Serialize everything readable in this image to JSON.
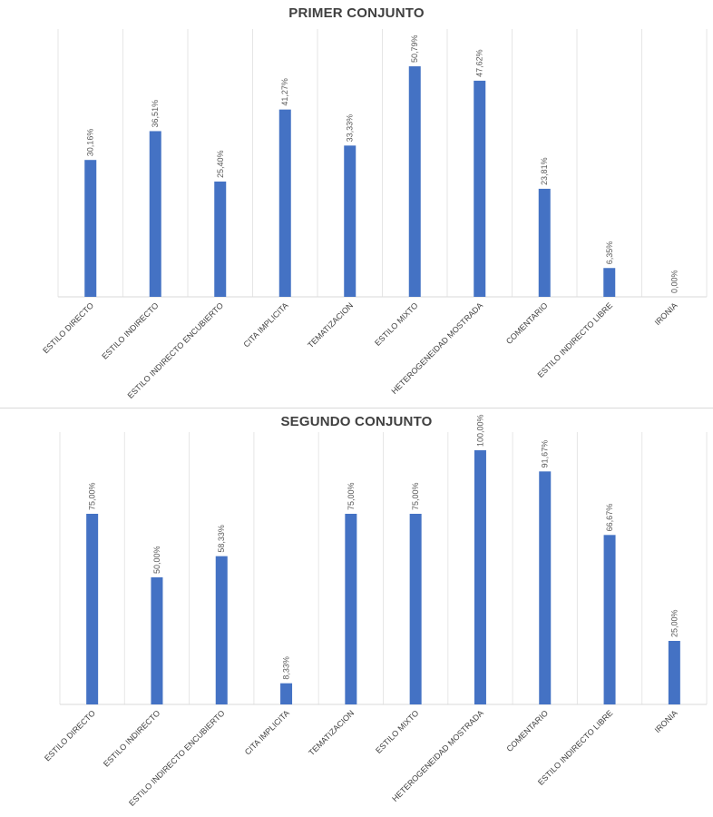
{
  "chart_data": [
    {
      "type": "bar",
      "title": "PRIMER CONJUNTO",
      "xlabel": "",
      "ylabel": "",
      "categories": [
        "ESTILO DIRECTO",
        "ESTILO INDIRECTO",
        "ESTILO INDIRECTO ENCUBIERTO",
        "CITA IMPLICITA",
        "TEMATIZACION",
        "ESTILO MIXTO",
        "HETEROGENEIDAD MOSTRADA",
        "COMENTARIO",
        "ESTILO INDIRECTO LIBRE",
        "IRONIA"
      ],
      "values": [
        30.16,
        36.51,
        25.4,
        41.27,
        33.33,
        50.79,
        47.62,
        23.81,
        6.35,
        0.0
      ],
      "data_labels": [
        "30,16%",
        "36,51%",
        "25,40%",
        "41,27%",
        "33,33%",
        "50,79%",
        "47,62%",
        "23,81%",
        "6,35%",
        "0,00%"
      ],
      "ylim": [
        0,
        55
      ],
      "grid": "vertical",
      "legend": "none",
      "bar_color": "#4472C4"
    },
    {
      "type": "bar",
      "title": "SEGUNDO CONJUNTO",
      "xlabel": "",
      "ylabel": "",
      "categories": [
        "ESTILO DIRECTO",
        "ESTILO INDIRECTO",
        "ESTILO INDIRECTO ENCUBIERTO",
        "CITA IMPLICITA",
        "TEMATIZACION",
        "ESTILO MIXTO",
        "HETEROGENEIDAD MOSTRADA",
        "COMENTARIO",
        "ESTILO INDIRECTO LIBRE",
        "IRONIA"
      ],
      "values": [
        75.0,
        50.0,
        58.33,
        8.33,
        75.0,
        75.0,
        100.0,
        91.67,
        66.67,
        25.0
      ],
      "data_labels": [
        "75,00%",
        "50,00%",
        "58,33%",
        "8,33%",
        "75,00%",
        "75,00%",
        "100,00%",
        "91,67%",
        "66,67%",
        "25,00%"
      ],
      "ylim": [
        0,
        100
      ],
      "grid": "vertical",
      "legend": "none",
      "bar_color": "#4472C4"
    }
  ]
}
